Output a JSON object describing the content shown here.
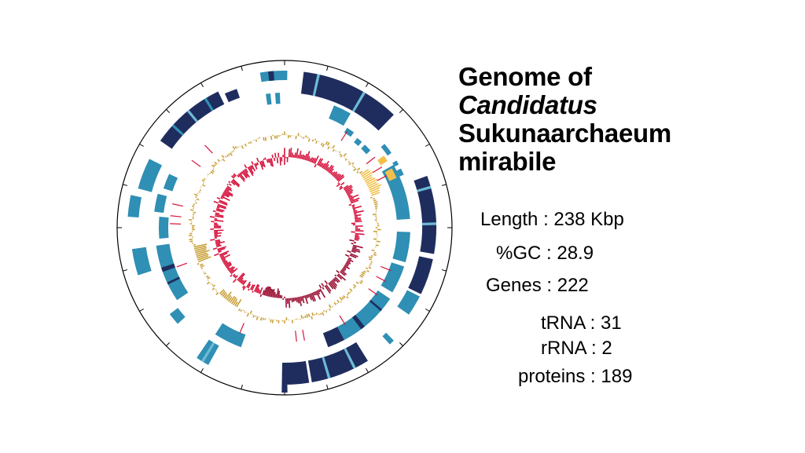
{
  "title": {
    "line1": "Genome of",
    "line2": "Candidatus",
    "line3": "Sukunaarchaeum",
    "line4": "mirabile"
  },
  "stats": {
    "length": "Length : 238 Kbp",
    "gc": "%GC : 28.9",
    "genes": "Genes : 222",
    "trna": "tRNA : 31",
    "rrna": "rRNA : 2",
    "proteins": "proteins : 189"
  },
  "colors": {
    "cds_dark": "#1f2d5e",
    "cds_teal": "#2f8fb4",
    "cds_light": "#6dbbd6",
    "gc_content": "#c9a13a",
    "gc_highlight": "#f2c04a",
    "gc_skew": "#d6143e",
    "gc_skew_dark": "#9b0f33",
    "rna_marker": "#d6143e"
  }
}
